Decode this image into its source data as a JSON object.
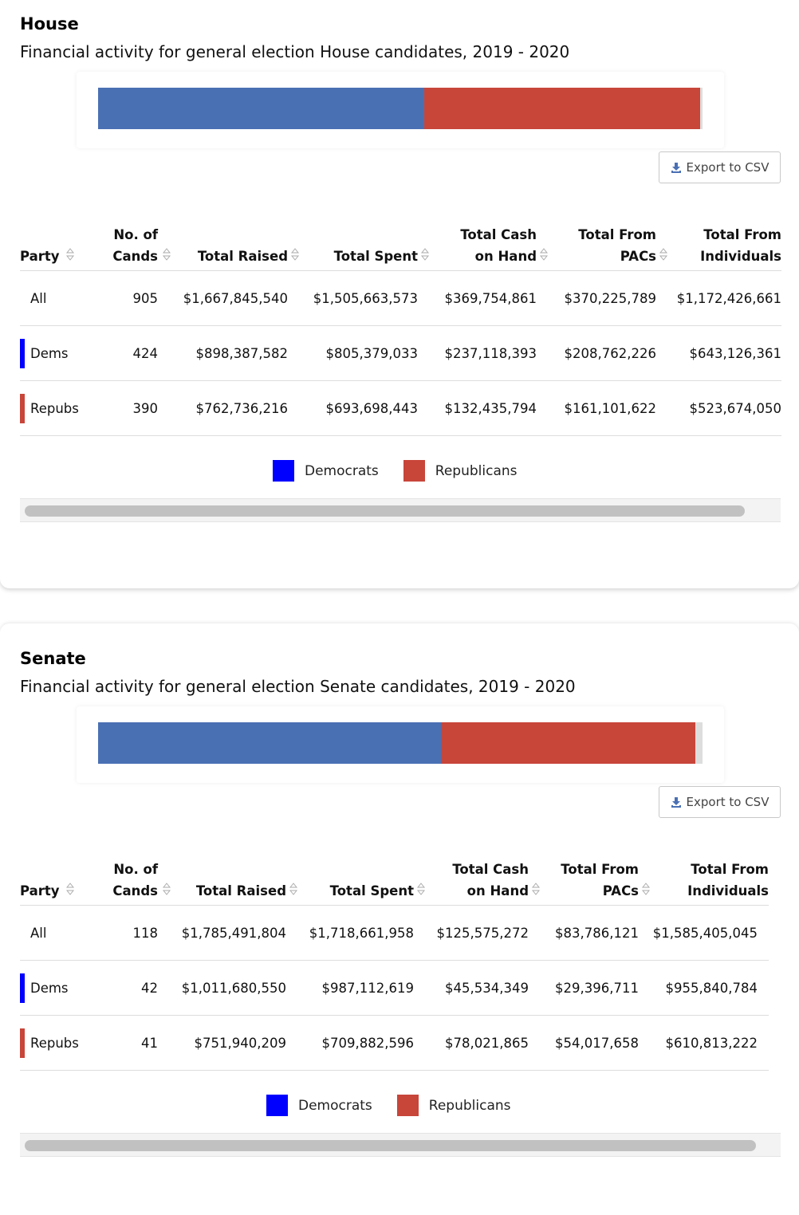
{
  "house": {
    "title": "House",
    "subtitle": "Financial activity for general election House candidates, 2019 - 2020",
    "export_label": "Export to CSV",
    "bar": {
      "dem_share": 0.539,
      "rep_share": 0.457
    },
    "headers": [
      "Party",
      "No. of Cands",
      "Total Raised",
      "Total Spent",
      "Total Cash on Hand",
      "Total From PACs",
      "Total From Individuals"
    ],
    "headers_l1": [
      "Party",
      "No. of",
      "Total Raised",
      "Total Spent",
      "Total Cash",
      "Total From",
      "Total From"
    ],
    "headers_l2": [
      "",
      "Cands",
      "",
      "",
      "on Hand",
      "PACs",
      "Individuals"
    ],
    "rows": [
      {
        "party": "All",
        "cands": "905",
        "raised": "$1,667,845,540",
        "spent": "$1,505,663,573",
        "cash": "$369,754,861",
        "pacs": "$370,225,789",
        "indiv": "$1,172,426,661"
      },
      {
        "party": "Dems",
        "cands": "424",
        "raised": "$898,387,582",
        "spent": "$805,379,033",
        "cash": "$237,118,393",
        "pacs": "$208,762,226",
        "indiv": "$643,126,361"
      },
      {
        "party": "Repubs",
        "cands": "390",
        "raised": "$762,736,216",
        "spent": "$693,698,443",
        "cash": "$132,435,794",
        "pacs": "$161,101,622",
        "indiv": "$523,674,050"
      }
    ],
    "legend": [
      "Democrats",
      "Republicans"
    ]
  },
  "senate": {
    "title": "Senate",
    "subtitle": "Financial activity for general election Senate candidates, 2019 - 2020",
    "export_label": "Export to CSV",
    "bar": {
      "dem_share": 0.567,
      "rep_share": 0.421
    },
    "headers": [
      "Party",
      "No. of Cands",
      "Total Raised",
      "Total Spent",
      "Total Cash on Hand",
      "Total From PACs",
      "Total From Individuals"
    ],
    "headers_l1": [
      "Party",
      "No. of",
      "Total Raised",
      "Total Spent",
      "Total Cash",
      "Total From",
      "Total From"
    ],
    "headers_l2": [
      "",
      "Cands",
      "",
      "",
      "on Hand",
      "PACs",
      "Individuals"
    ],
    "rows": [
      {
        "party": "All",
        "cands": "118",
        "raised": "$1,785,491,804",
        "spent": "$1,718,661,958",
        "cash": "$125,575,272",
        "pacs": "$83,786,121",
        "indiv": "$1,585,405,045"
      },
      {
        "party": "Dems",
        "cands": "42",
        "raised": "$1,011,680,550",
        "spent": "$987,112,619",
        "cash": "$45,534,349",
        "pacs": "$29,396,711",
        "indiv": "$955,840,784"
      },
      {
        "party": "Repubs",
        "cands": "41",
        "raised": "$751,940,209",
        "spent": "$709,882,596",
        "cash": "$78,021,865",
        "pacs": "$54,017,658",
        "indiv": "$610,813,222"
      }
    ],
    "legend": [
      "Democrats",
      "Republicans"
    ]
  },
  "colors": {
    "dem_bar": "#4a70b4",
    "rep_bar": "#c8453a",
    "dem_legend": "#0000ff",
    "rep_legend": "#c8453a",
    "dem_stripe": "#0000ff",
    "rep_stripe": "#c8453a",
    "export_icon": "#4a70b4"
  },
  "icons": {
    "export": "download-icon",
    "sort": "sort-arrows-icon"
  }
}
